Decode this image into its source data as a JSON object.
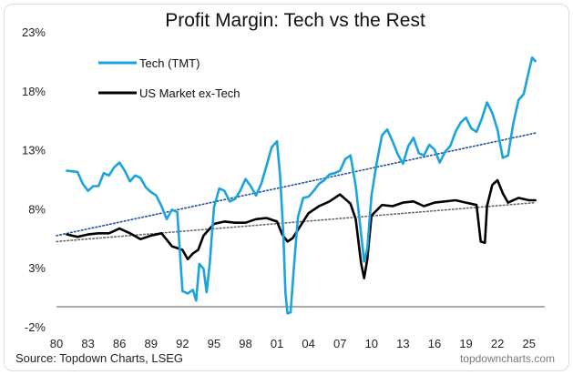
{
  "chart_data": {
    "type": "line",
    "title": "Profit Margin: Tech vs the Rest",
    "xlabel": "",
    "ylabel": "",
    "xlim": [
      1980,
      2026.5
    ],
    "ylim": [
      -2,
      23
    ],
    "y_ticks": [
      -2,
      3,
      8,
      13,
      18,
      23
    ],
    "y_tick_labels": [
      "-2%",
      "3%",
      "8%",
      "13%",
      "18%",
      "23%"
    ],
    "x_ticks": [
      1980,
      1983,
      1986,
      1989,
      1992,
      1995,
      1998,
      2001,
      2004,
      2007,
      2010,
      2013,
      2016,
      2019,
      2022,
      2025
    ],
    "x_tick_labels": [
      "80",
      "83",
      "86",
      "89",
      "92",
      "95",
      "98",
      "01",
      "04",
      "07",
      "10",
      "13",
      "16",
      "19",
      "22",
      "25"
    ],
    "grid": false,
    "legend": "top-left",
    "series": [
      {
        "name": "Tech (TMT)",
        "color": "#1aa3dd",
        "points": [
          [
            1981,
            11.3
          ],
          [
            1982,
            11.2
          ],
          [
            1982.5,
            10.2
          ],
          [
            1983,
            9.6
          ],
          [
            1983.5,
            10.0
          ],
          [
            1984,
            10.0
          ],
          [
            1984.5,
            11.1
          ],
          [
            1985,
            10.9
          ],
          [
            1985.5,
            11.6
          ],
          [
            1986,
            12.0
          ],
          [
            1986.5,
            11.3
          ],
          [
            1987,
            10.4
          ],
          [
            1987.5,
            10.9
          ],
          [
            1988,
            10.7
          ],
          [
            1988.5,
            9.9
          ],
          [
            1989,
            9.5
          ],
          [
            1989.5,
            9.2
          ],
          [
            1990,
            8.3
          ],
          [
            1990.5,
            7.2
          ],
          [
            1991,
            8.0
          ],
          [
            1991.5,
            7.8
          ],
          [
            1992,
            1.1
          ],
          [
            1992.5,
            0.9
          ],
          [
            1993,
            1.2
          ],
          [
            1993.3,
            0.3
          ],
          [
            1993.6,
            3.4
          ],
          [
            1994,
            3.0
          ],
          [
            1994.3,
            1.0
          ],
          [
            1994.6,
            3.5
          ],
          [
            1995,
            8.2
          ],
          [
            1995.5,
            9.8
          ],
          [
            1996,
            9.6
          ],
          [
            1996.5,
            8.7
          ],
          [
            1997,
            8.9
          ],
          [
            1997.5,
            9.6
          ],
          [
            1998,
            10.6
          ],
          [
            1998.5,
            10.0
          ],
          [
            1999,
            9.2
          ],
          [
            1999.5,
            10.2
          ],
          [
            2000,
            11.7
          ],
          [
            2000.5,
            13.3
          ],
          [
            2001,
            13.8
          ],
          [
            2001.3,
            10.8
          ],
          [
            2001.6,
            6.0
          ],
          [
            2001.8,
            1.0
          ],
          [
            2002,
            -0.8
          ],
          [
            2002.3,
            -0.7
          ],
          [
            2002.6,
            3.0
          ],
          [
            2003,
            7.4
          ],
          [
            2003.5,
            9.0
          ],
          [
            2004,
            9.1
          ],
          [
            2004.5,
            9.6
          ],
          [
            2005,
            10.2
          ],
          [
            2005.5,
            10.5
          ],
          [
            2006,
            11.0
          ],
          [
            2006.5,
            11.1
          ],
          [
            2007,
            11.3
          ],
          [
            2007.5,
            12.3
          ],
          [
            2008,
            12.6
          ],
          [
            2008.5,
            10.0
          ],
          [
            2009,
            6.0
          ],
          [
            2009.3,
            3.6
          ],
          [
            2009.6,
            4.7
          ],
          [
            2010,
            9.2
          ],
          [
            2010.5,
            12.0
          ],
          [
            2011,
            14.3
          ],
          [
            2011.5,
            14.8
          ],
          [
            2012,
            13.8
          ],
          [
            2012.5,
            12.7
          ],
          [
            2013,
            11.9
          ],
          [
            2013.5,
            13.4
          ],
          [
            2014,
            14.1
          ],
          [
            2014.5,
            12.8
          ],
          [
            2015,
            12.6
          ],
          [
            2015.5,
            13.5
          ],
          [
            2016,
            13.1
          ],
          [
            2016.5,
            12.0
          ],
          [
            2017,
            12.9
          ],
          [
            2017.5,
            13.4
          ],
          [
            2018,
            14.6
          ],
          [
            2018.5,
            15.4
          ],
          [
            2019,
            15.8
          ],
          [
            2019.5,
            14.9
          ],
          [
            2020,
            14.6
          ],
          [
            2020.5,
            15.7
          ],
          [
            2021,
            17.1
          ],
          [
            2021.5,
            16.2
          ],
          [
            2022,
            14.8
          ],
          [
            2022.5,
            12.4
          ],
          [
            2023,
            12.6
          ],
          [
            2023.5,
            15.3
          ],
          [
            2024,
            17.3
          ],
          [
            2024.5,
            17.8
          ],
          [
            2025,
            19.8
          ],
          [
            2025.3,
            20.9
          ],
          [
            2025.6,
            20.6
          ]
        ]
      },
      {
        "name": "US Market ex-Tech",
        "color": "#000000",
        "points": [
          [
            1981,
            5.9
          ],
          [
            1982,
            5.7
          ],
          [
            1983,
            5.9
          ],
          [
            1984,
            6.0
          ],
          [
            1985,
            6.0
          ],
          [
            1986,
            6.4
          ],
          [
            1987,
            6.0
          ],
          [
            1988,
            5.5
          ],
          [
            1989,
            5.8
          ],
          [
            1990,
            6.0
          ],
          [
            1991,
            4.9
          ],
          [
            1992,
            4.6
          ],
          [
            1992.5,
            3.8
          ],
          [
            1993,
            4.3
          ],
          [
            1993.5,
            4.6
          ],
          [
            1994,
            5.8
          ],
          [
            1995,
            6.8
          ],
          [
            1996,
            7.0
          ],
          [
            1997,
            6.9
          ],
          [
            1998,
            6.9
          ],
          [
            1999,
            7.2
          ],
          [
            2000,
            7.3
          ],
          [
            2001,
            7.0
          ],
          [
            2001.5,
            5.9
          ],
          [
            2002,
            5.3
          ],
          [
            2002.5,
            5.6
          ],
          [
            2003,
            6.3
          ],
          [
            2004,
            7.7
          ],
          [
            2005,
            8.3
          ],
          [
            2006,
            8.7
          ],
          [
            2007,
            9.3
          ],
          [
            2007.5,
            8.9
          ],
          [
            2008,
            8.5
          ],
          [
            2008.5,
            7.2
          ],
          [
            2009,
            3.5
          ],
          [
            2009.3,
            2.2
          ],
          [
            2009.6,
            3.8
          ],
          [
            2010,
            7.5
          ],
          [
            2011,
            8.4
          ],
          [
            2012,
            8.3
          ],
          [
            2013,
            8.6
          ],
          [
            2014,
            8.7
          ],
          [
            2015,
            8.3
          ],
          [
            2016,
            8.6
          ],
          [
            2017,
            8.7
          ],
          [
            2018,
            8.8
          ],
          [
            2019,
            8.6
          ],
          [
            2020,
            8.4
          ],
          [
            2020.4,
            5.3
          ],
          [
            2020.8,
            5.2
          ],
          [
            2021,
            8.3
          ],
          [
            2021.5,
            10.1
          ],
          [
            2022,
            10.5
          ],
          [
            2022.5,
            9.4
          ],
          [
            2023,
            8.6
          ],
          [
            2024,
            9.0
          ],
          [
            2025,
            8.8
          ],
          [
            2025.6,
            8.8
          ]
        ]
      }
    ],
    "trendlines": [
      {
        "name": "Tech (TMT) trend",
        "color": "#1a4fa0",
        "style": "dotted",
        "points": [
          [
            1980,
            5.8
          ],
          [
            2025.6,
            14.5
          ]
        ]
      },
      {
        "name": "US Market ex-Tech trend",
        "color": "#666666",
        "style": "dotted",
        "points": [
          [
            1980,
            5.3
          ],
          [
            2025.6,
            8.6
          ]
        ]
      }
    ],
    "source": "Source: Topdown Charts, LSEG",
    "brand": "topdowncharts.com"
  }
}
